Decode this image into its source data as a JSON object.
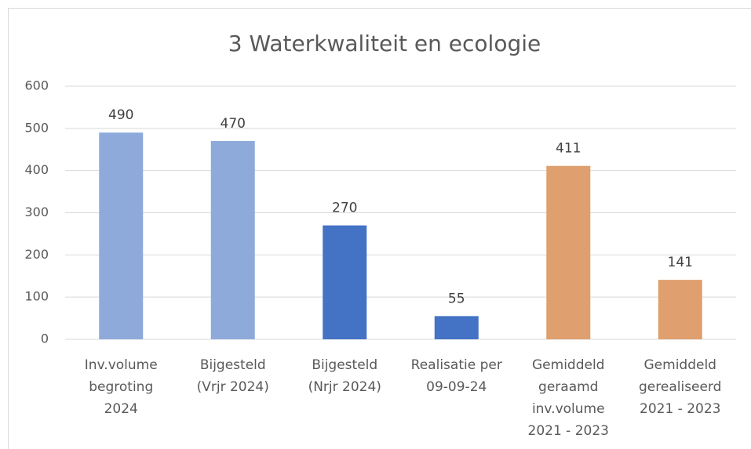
{
  "chart_data": {
    "type": "bar",
    "title": "3 Waterkwaliteit en ecologie",
    "categories": [
      [
        "Inv.volume",
        "begroting",
        "2024"
      ],
      [
        "Bijgesteld",
        "(Vrjr 2024)"
      ],
      [
        "Bijgesteld",
        "(Nrjr 2024)"
      ],
      [
        "Realisatie per",
        "09-09-24"
      ],
      [
        "Gemiddeld",
        "geraamd",
        "inv.volume",
        "2021 - 2023"
      ],
      [
        "Gemiddeld",
        "gerealiseerd",
        "2021 - 2023"
      ]
    ],
    "values": [
      490,
      470,
      270,
      55,
      411,
      141
    ],
    "colors": [
      "#8eaadb",
      "#8eaadb",
      "#4472c4",
      "#4472c4",
      "#df9f6e",
      "#df9f6e"
    ],
    "ylim": [
      0,
      600
    ],
    "yticks": [
      0,
      100,
      200,
      300,
      400,
      500,
      600
    ],
    "grid": true
  }
}
